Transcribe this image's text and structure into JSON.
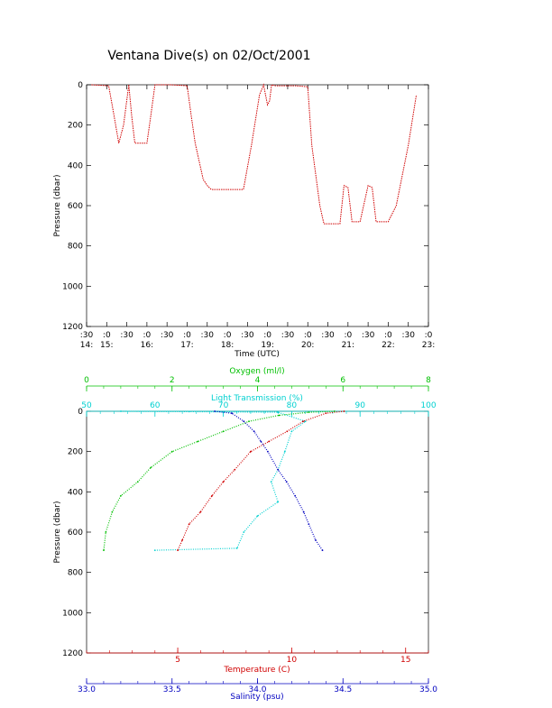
{
  "title": "Ventana Dive(s) on 02/Oct/2001",
  "chart_data": [
    {
      "type": "line",
      "ylabel": "Pressure (dbar)",
      "xlabel": "Time (UTC)",
      "y_ticks": [
        "0",
        "200",
        "400",
        "600",
        "800",
        "1000",
        "1200"
      ],
      "ylim": [
        1200,
        0
      ],
      "x_ticks_minutes": [
        ":30",
        ":0",
        ":30",
        ":0",
        ":30",
        ":0",
        ":30",
        ":0",
        ":30",
        ":0",
        ":30",
        ":0",
        ":30",
        ":0",
        ":30",
        ":0",
        ":30",
        ":0"
      ],
      "x_ticks_hours": [
        "14:",
        "15:",
        "16:",
        "17:",
        "18:",
        "19:",
        "20:",
        "21:",
        "22:",
        "23:"
      ],
      "xlim_hours": [
        14.5,
        23.0
      ],
      "series": [
        {
          "color": "#d00000",
          "x": [
            14.5,
            14.62,
            15.05,
            15.18,
            15.3,
            15.42,
            15.55,
            15.62,
            15.7,
            16.0,
            16.1,
            16.2,
            16.4,
            16.6,
            17.0,
            17.1,
            17.2,
            17.4,
            17.5,
            17.6,
            18.0,
            18.4,
            18.6,
            18.8,
            18.9,
            19.0,
            19.05,
            19.1,
            19.2,
            19.7,
            20.0,
            20.1,
            20.3,
            20.4,
            20.6,
            20.8,
            20.9,
            21.0,
            21.1,
            21.3,
            21.5,
            21.6,
            21.7,
            21.8,
            22.0,
            22.2,
            22.5,
            22.7,
            22.9,
            23.0
          ],
          "y": [
            null,
            0,
            5,
            150,
            290,
            200,
            0,
            150,
            290,
            290,
            150,
            0,
            0,
            0,
            5,
            150,
            290,
            470,
            500,
            520,
            520,
            520,
            300,
            50,
            0,
            100,
            80,
            0,
            5,
            5,
            10,
            300,
            600,
            690,
            690,
            690,
            500,
            510,
            680,
            680,
            500,
            510,
            680,
            680,
            680,
            600,
            300,
            50,
            null,
            null
          ]
        }
      ]
    },
    {
      "type": "scatter",
      "ylabel": "Pressure (dbar)",
      "y_ticks": [
        "0",
        "200",
        "400",
        "600",
        "800",
        "1000",
        "1200"
      ],
      "ylim": [
        1200,
        0
      ],
      "axes": {
        "oxygen": {
          "label": "Oxygen (ml/l)",
          "ticks": [
            "0",
            "2",
            "4",
            "6",
            "8"
          ],
          "range": [
            0,
            8
          ],
          "color": "#00c000"
        },
        "transmission": {
          "label": "Light Transmission (%)",
          "ticks": [
            "50",
            "60",
            "70",
            "80",
            "90",
            "100"
          ],
          "range": [
            50,
            100
          ],
          "color": "#00d0d0"
        },
        "temperature": {
          "label": "Temperature (C)",
          "ticks": [
            "5",
            "10",
            "15"
          ],
          "range": [
            1.0,
            16.0
          ],
          "color": "#d00000"
        },
        "salinity": {
          "label": "Salinity (psu)",
          "ticks": [
            "33.0",
            "33.5",
            "34.0",
            "34.5",
            "35.0"
          ],
          "range": [
            33.0,
            35.0
          ],
          "color": "#0000c0"
        }
      },
      "series": [
        {
          "axis": "oxygen",
          "color": "#00c000",
          "x": [
            5.8,
            5.2,
            4.5,
            3.8,
            3.2,
            2.6,
            2.0,
            1.5,
            1.2,
            0.8,
            0.6,
            0.45,
            0.4
          ],
          "pressure": [
            0,
            5,
            20,
            50,
            100,
            150,
            200,
            280,
            350,
            420,
            500,
            600,
            690
          ]
        },
        {
          "axis": "transmission",
          "color": "#00d0d0",
          "x": [
            55,
            65,
            78,
            82,
            80,
            79,
            78,
            77,
            78,
            75,
            73,
            72,
            60
          ],
          "pressure": [
            0,
            2,
            5,
            50,
            100,
            200,
            290,
            350,
            450,
            520,
            600,
            680,
            690
          ]
        },
        {
          "axis": "temperature",
          "color": "#d00000",
          "x": [
            12.3,
            11.5,
            10.5,
            9.8,
            9.0,
            8.2,
            7.5,
            7.0,
            6.5,
            6.0,
            5.5,
            5.2,
            5.0
          ],
          "pressure": [
            0,
            10,
            50,
            100,
            150,
            200,
            290,
            350,
            420,
            500,
            560,
            640,
            690
          ]
        },
        {
          "axis": "salinity",
          "color": "#0000c0",
          "x": [
            33.75,
            33.85,
            33.92,
            33.98,
            34.02,
            34.06,
            34.12,
            34.17,
            34.22,
            34.27,
            34.3,
            34.34,
            34.38
          ],
          "pressure": [
            0,
            10,
            50,
            100,
            150,
            200,
            290,
            350,
            420,
            500,
            560,
            640,
            690
          ]
        }
      ]
    }
  ]
}
